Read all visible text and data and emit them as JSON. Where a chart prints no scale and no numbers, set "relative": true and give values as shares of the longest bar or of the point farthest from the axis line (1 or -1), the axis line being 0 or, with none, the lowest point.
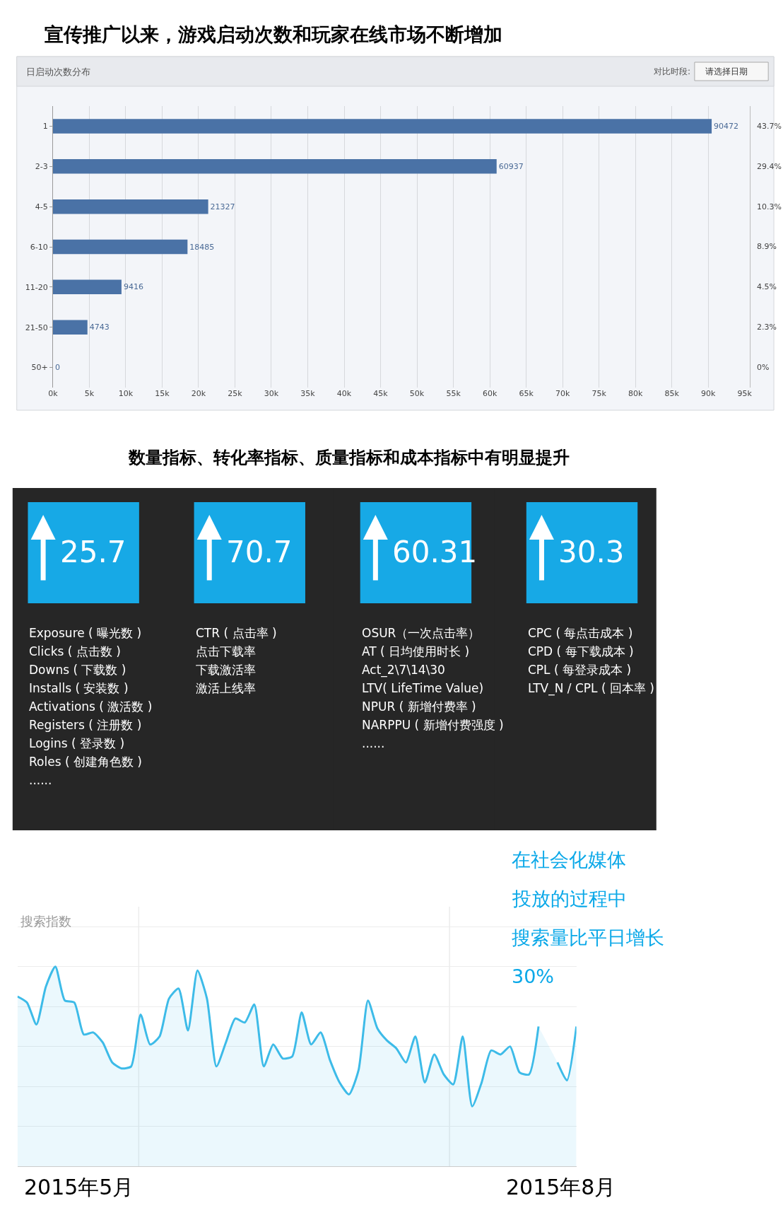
{
  "chart_data": [
    {
      "type": "bar",
      "orientation": "horizontal",
      "title": "宣传推广以来，游戏启动次数和玩家在线市场不断增加",
      "subtitle": "日启动次数分布",
      "categories": [
        "1",
        "2-3",
        "4-5",
        "6-10",
        "11-20",
        "21-50",
        "50+"
      ],
      "values": [
        90472,
        60937,
        21327,
        18485,
        9416,
        4743,
        0
      ],
      "color": "#4a72a6",
      "data_labels": true,
      "xlim": [
        0,
        95000
      ],
      "xticks": [
        {
          "value": 0,
          "label": "0k"
        },
        {
          "value": 5000,
          "label": "5k"
        },
        {
          "value": 10000,
          "label": "10k"
        },
        {
          "value": 15000,
          "label": "15k"
        },
        {
          "value": 20000,
          "label": "20k"
        },
        {
          "value": 25000,
          "label": "25k"
        },
        {
          "value": 30000,
          "label": "30k"
        },
        {
          "value": 35000,
          "label": "35k"
        },
        {
          "value": 40000,
          "label": "40k"
        },
        {
          "value": 45000,
          "label": "45k"
        },
        {
          "value": 50000,
          "label": "50k"
        },
        {
          "value": 55000,
          "label": "55k"
        },
        {
          "value": 60000,
          "label": "60k"
        },
        {
          "value": 65000,
          "label": "65k"
        },
        {
          "value": 70000,
          "label": "70k"
        },
        {
          "value": 75000,
          "label": "75k"
        },
        {
          "value": 80000,
          "label": "80k"
        },
        {
          "value": 85000,
          "label": "85k"
        },
        {
          "value": 90000,
          "label": "90k"
        },
        {
          "value": 95000,
          "label": "95k"
        }
      ],
      "grid": "x",
      "annotations": [
        "对比时段:",
        "请选择日期",
        "43.7%",
        "29.4%",
        "10.3%",
        "8.9%",
        "4.5%",
        "2.3%",
        "0%"
      ]
    },
    {
      "type": "other",
      "title": "数量指标、转化率指标、质量指标和成本指标中有明显提升",
      "values": [
        25.7
      ],
      "data_labels": true,
      "color": "#17a9e6",
      "annotations": [
        "Exposure ( 曝光数 )",
        "Clicks ( 点击数 )",
        "Downs ( 下载数 )",
        "Installs ( 安装数 )",
        "Activations ( 激活数 )",
        "Registers ( 注册数 )",
        "Logins ( 登录数 )",
        "Roles ( 创建角色数 )",
        "......"
      ]
    },
    {
      "type": "other",
      "values": [
        70.7
      ],
      "data_labels": true,
      "color": "#17a9e6",
      "annotations": [
        "CTR ( 点击率 )",
        "点击下载率",
        "下载激活率",
        "激活上线率"
      ]
    },
    {
      "type": "other",
      "values": [
        60.31
      ],
      "data_labels": true,
      "color": "#17a9e6",
      "annotations": [
        "OSUR（一次点击率）",
        "AT ( 日均使用时长 )",
        "Act_2\\7\\14\\30",
        "LTV( LifeTime Value)",
        "NPUR ( 新增付费率 )",
        "NARPPU ( 新增付费强度 )",
        "......"
      ]
    },
    {
      "type": "other",
      "values": [
        30.3
      ],
      "data_labels": true,
      "color": "#17a9e6",
      "annotations": [
        "CPC ( 每点击成本 )",
        "CPD ( 每下载成本 )",
        "CPL ( 每登录成本 )",
        "LTV_N / CPL ( 回本率 )"
      ]
    },
    {
      "type": "area",
      "relative": true,
      "ylabel": "搜索指数",
      "grid": true,
      "categories": [
        null,
        null,
        null,
        null,
        null,
        null,
        null,
        null,
        null,
        null,
        null,
        null,
        null,
        null,
        null,
        null,
        null,
        null,
        null,
        null,
        null,
        null,
        null,
        null,
        null,
        null,
        null,
        null,
        null,
        null,
        null,
        null,
        null,
        null,
        null,
        null,
        null,
        null,
        null,
        null,
        null,
        null,
        null,
        null,
        null,
        null,
        null,
        null,
        null,
        null,
        null,
        null,
        null,
        null,
        null,
        null,
        null,
        null,
        null,
        null
      ],
      "series": [
        {
          "color": "#3dbbe8",
          "values": [
            0.85,
            0.82,
            0.71,
            0.9,
            1.0,
            0.83,
            0.82,
            0.66,
            0.67,
            0.62,
            0.52,
            0.49,
            0.5,
            0.76,
            0.61,
            0.65,
            0.84,
            0.89,
            0.68,
            0.98,
            0.84,
            0.5,
            0.62,
            0.74,
            0.72,
            0.81,
            0.5,
            0.61,
            0.54,
            0.55,
            0.77,
            0.61,
            0.67,
            0.53,
            0.42,
            0.36,
            0.48,
            0.83,
            0.69,
            0.63,
            0.59,
            0.52,
            0.65,
            0.42,
            0.56,
            0.46,
            0.41,
            0.65,
            0.3,
            0.42,
            0.58,
            0.56,
            0.6,
            0.47,
            0.46,
            0.7,
            null,
            0.52,
            0.43,
            0.7
          ]
        }
      ],
      "annotations": [
        "在社会化媒体",
        "投放的过程中",
        "搜索量比平日增长",
        "30%",
        "2015年5月",
        "2015年8月"
      ]
    }
  ]
}
